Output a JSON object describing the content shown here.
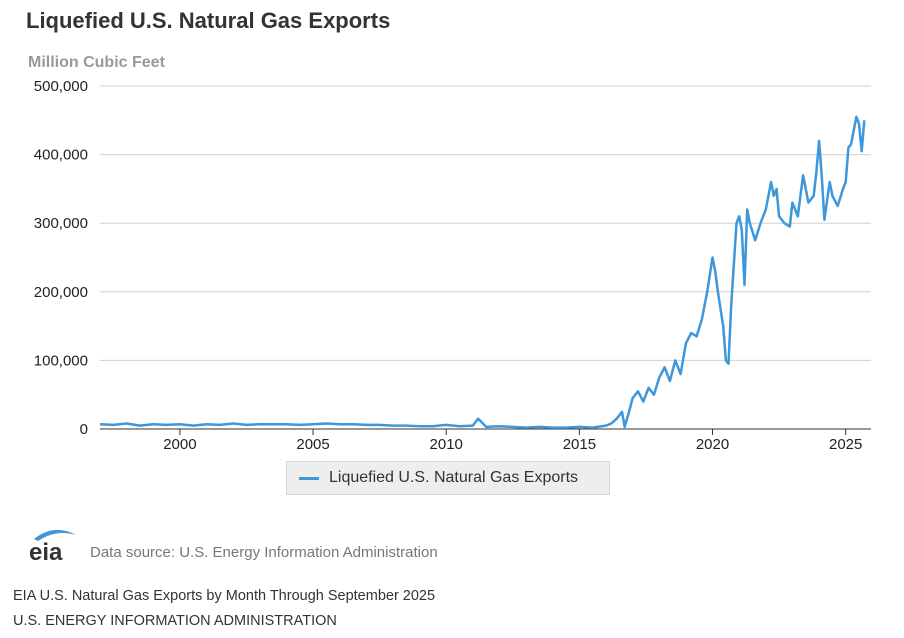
{
  "chart_data": {
    "type": "line",
    "title": "Liquefied U.S. Natural Gas Exports",
    "ylabel": "Million Cubic Feet",
    "xlabel": "",
    "ylim": [
      0,
      500000
    ],
    "xlim": [
      1997.0,
      2025.95
    ],
    "yticks": [
      "0",
      "100,000",
      "200,000",
      "300,000",
      "400,000",
      "500,000"
    ],
    "yticks_values": [
      0,
      100000,
      200000,
      300000,
      400000,
      500000
    ],
    "xticks": [
      "2000",
      "2005",
      "2010",
      "2015",
      "2020",
      "2025"
    ],
    "xticks_values": [
      2000,
      2005,
      2010,
      2015,
      2020,
      2025
    ],
    "grid": true,
    "legend_position": "bottom-center",
    "color": "#3d97da",
    "series": [
      {
        "name": "Liquefied U.S. Natural Gas Exports",
        "x": [
          1997.0,
          1997.5,
          1998.0,
          1998.5,
          1999.0,
          1999.5,
          2000.0,
          2000.5,
          2001.0,
          2001.5,
          2002.0,
          2002.5,
          2003.0,
          2003.5,
          2004.0,
          2004.5,
          2005.0,
          2005.5,
          2006.0,
          2006.5,
          2007.0,
          2007.5,
          2008.0,
          2008.5,
          2009.0,
          2009.5,
          2010.0,
          2010.5,
          2011.0,
          2011.2,
          2011.5,
          2012.0,
          2012.5,
          2013.0,
          2013.5,
          2014.0,
          2014.5,
          2015.0,
          2015.5,
          2016.0,
          2016.2,
          2016.4,
          2016.6,
          2016.7,
          2016.9,
          2017.0,
          2017.2,
          2017.4,
          2017.6,
          2017.8,
          2018.0,
          2018.2,
          2018.4,
          2018.6,
          2018.8,
          2019.0,
          2019.2,
          2019.4,
          2019.6,
          2019.8,
          2020.0,
          2020.1,
          2020.2,
          2020.4,
          2020.5,
          2020.6,
          2020.7,
          2020.9,
          2021.0,
          2021.1,
          2021.2,
          2021.3,
          2021.4,
          2021.6,
          2021.8,
          2022.0,
          2022.2,
          2022.3,
          2022.4,
          2022.5,
          2022.7,
          2022.9,
          2023.0,
          2023.2,
          2023.4,
          2023.6,
          2023.8,
          2023.9,
          2024.0,
          2024.1,
          2024.2,
          2024.4,
          2024.5,
          2024.7,
          2024.9,
          2025.0,
          2025.1,
          2025.2,
          2025.4,
          2025.5,
          2025.6,
          2025.7
        ],
        "values": [
          7000,
          6000,
          8000,
          5000,
          7000,
          6000,
          7000,
          5000,
          7000,
          6000,
          8000,
          6000,
          7000,
          7000,
          7000,
          6000,
          7000,
          8000,
          7000,
          7000,
          6000,
          6000,
          5000,
          5000,
          4000,
          4000,
          6000,
          4000,
          5000,
          15000,
          3000,
          4000,
          3000,
          2000,
          3000,
          2000,
          2000,
          3000,
          2000,
          5000,
          8000,
          15000,
          25000,
          3000,
          30000,
          45000,
          55000,
          40000,
          60000,
          50000,
          75000,
          90000,
          70000,
          100000,
          80000,
          125000,
          140000,
          135000,
          160000,
          200000,
          250000,
          230000,
          200000,
          150000,
          100000,
          95000,
          180000,
          300000,
          310000,
          290000,
          210000,
          320000,
          300000,
          275000,
          300000,
          320000,
          360000,
          340000,
          350000,
          310000,
          300000,
          295000,
          330000,
          310000,
          370000,
          330000,
          340000,
          375000,
          420000,
          370000,
          305000,
          360000,
          340000,
          325000,
          350000,
          360000,
          410000,
          415000,
          455000,
          445000,
          405000,
          450000
        ]
      }
    ]
  },
  "legend": {
    "label": "Liquefied U.S. Natural Gas Exports"
  },
  "source": {
    "logo_text": "eia",
    "text": "Data source: U.S. Energy Information Administration"
  },
  "caption": "EIA U.S. Natural Gas Exports by Month Through September 2025",
  "credit": "U.S. ENERGY INFORMATION ADMINISTRATION"
}
